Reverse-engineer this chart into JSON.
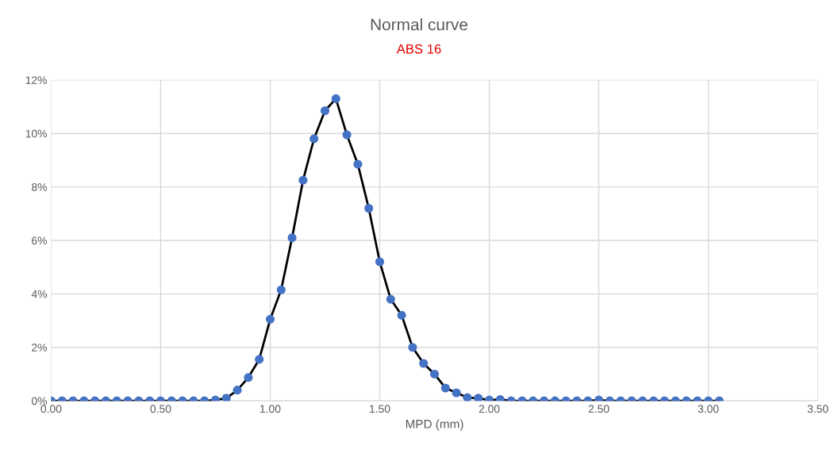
{
  "chart_data": {
    "type": "line",
    "title": "Normal curve",
    "subtitle": "ABS 16",
    "xlabel": "MPD (mm)",
    "x": [
      0,
      0.05,
      0.1,
      0.15,
      0.2,
      0.25,
      0.3,
      0.35,
      0.4,
      0.45,
      0.5,
      0.55,
      0.6,
      0.65,
      0.7,
      0.75,
      0.8,
      0.85,
      0.9,
      0.95,
      1.0,
      1.05,
      1.1,
      1.15,
      1.2,
      1.25,
      1.3,
      1.35,
      1.4,
      1.45,
      1.5,
      1.55,
      1.6,
      1.65,
      1.7,
      1.75,
      1.8,
      1.85,
      1.9,
      1.95,
      2.0,
      2.05,
      2.1,
      2.15,
      2.2,
      2.25,
      2.3,
      2.35,
      2.4,
      2.45,
      2.5,
      2.55,
      2.6,
      2.65,
      2.7,
      2.75,
      2.8,
      2.85,
      2.9,
      2.95,
      3.0,
      3.05
    ],
    "series": [
      {
        "color": "#4472c4",
        "values": [
          0,
          0,
          0,
          0,
          0,
          0,
          0,
          0,
          0,
          0,
          0,
          0,
          0,
          0,
          0,
          0.03,
          0.1,
          0.4,
          0.87,
          1.55,
          3.05,
          4.15,
          6.1,
          8.25,
          9.8,
          10.85,
          11.3,
          9.95,
          8.85,
          7.2,
          5.2,
          3.8,
          3.2,
          2.0,
          1.4,
          1.0,
          0.48,
          0.3,
          0.12,
          0.1,
          0.03,
          0.05,
          0,
          0,
          0,
          0,
          0,
          0,
          0,
          0,
          0.03,
          0,
          0,
          0,
          0,
          0,
          0,
          0,
          0,
          0,
          0,
          0
        ]
      }
    ],
    "xlim": [
      0,
      3.5
    ],
    "xticks": [
      {
        "value": 0,
        "label": "0.00"
      },
      {
        "value": 0.5,
        "label": "0.50"
      },
      {
        "value": 1.0,
        "label": "1.00"
      },
      {
        "value": 1.5,
        "label": "1.50"
      },
      {
        "value": 2.0,
        "label": "2.00"
      },
      {
        "value": 2.5,
        "label": "2.50"
      },
      {
        "value": 3.0,
        "label": "3.00"
      },
      {
        "value": 3.5,
        "label": "3.50"
      }
    ],
    "ylim": [
      0,
      12
    ],
    "yticks": [
      {
        "value": 0,
        "label": "0%"
      },
      {
        "value": 2,
        "label": "2%"
      },
      {
        "value": 4,
        "label": "4%"
      },
      {
        "value": 6,
        "label": "6%"
      },
      {
        "value": 8,
        "label": "8%"
      },
      {
        "value": 10,
        "label": "10%"
      },
      {
        "value": 12,
        "label": "12%"
      }
    ],
    "grid": true,
    "marker": "circle",
    "line_style": "solid",
    "legend": false
  }
}
